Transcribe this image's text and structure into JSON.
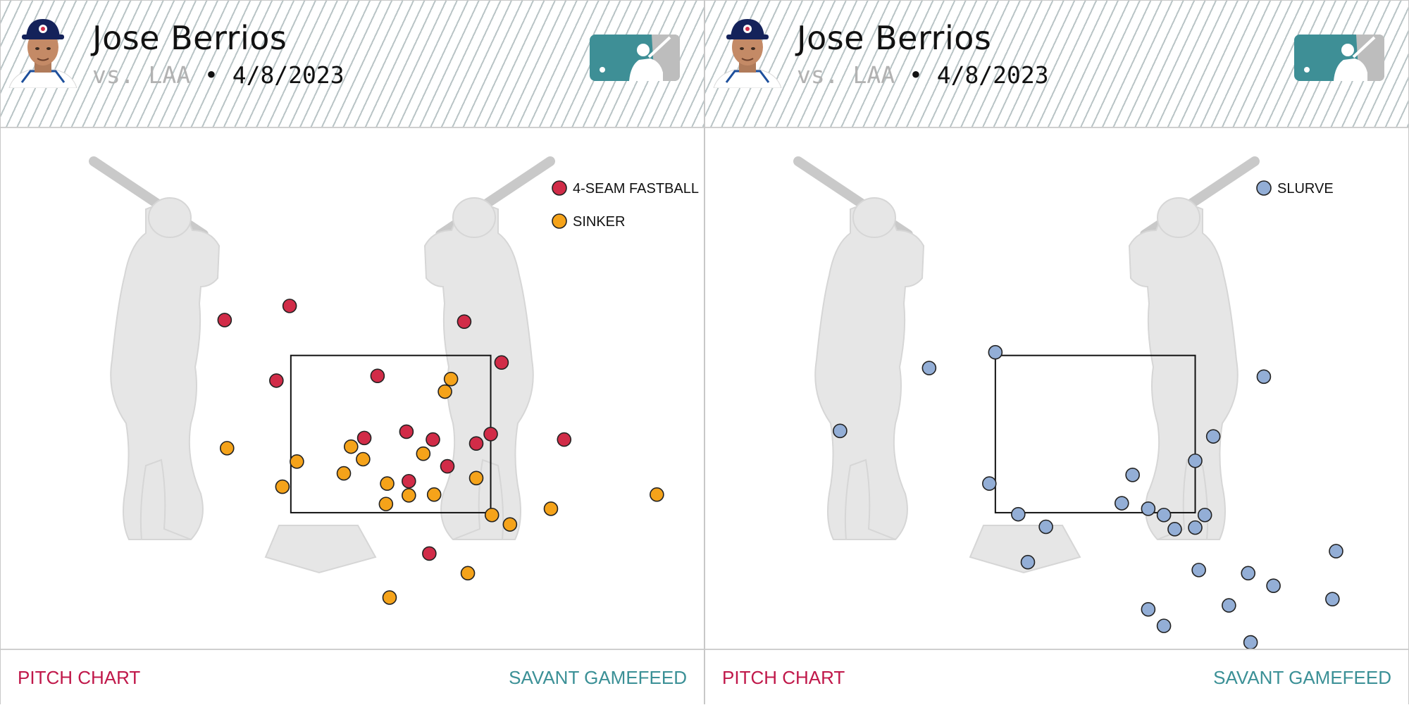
{
  "panels": [
    {
      "player": "Jose Berrios",
      "opponent": "vs. LAA",
      "separator": "•",
      "date": "4/8/2023",
      "footer_left": "PITCH CHART",
      "footer_right": "SAVANT GAMEFEED"
    },
    {
      "player": "Jose Berrios",
      "opponent": "vs. LAA",
      "separator": "•",
      "date": "4/8/2023",
      "footer_left": "PITCH CHART",
      "footer_right": "SAVANT GAMEFEED"
    }
  ],
  "colors": {
    "four_seam": "#d12c48",
    "sinker": "#f5a31a",
    "slurve": "#93aed6",
    "footer_left": "#c0184a",
    "footer_right": "#3b9096",
    "logo": "#3e8f96"
  },
  "icons": [
    "player-headshot-icon",
    "mlb-logo-icon",
    "batter-silhouette-icon",
    "home-plate-icon"
  ],
  "chart_data": [
    {
      "type": "scatter",
      "title": "",
      "xlabel": "",
      "ylabel": "",
      "note": "Pitch locations from catcher's view; strike zone rectangle shown",
      "grid": false,
      "legend": "top-right",
      "xlim": [
        -3.24,
        2.6
      ],
      "ylim": [
        -0.23,
        6.4
      ],
      "strike_zone": {
        "x": [
          -0.83,
          0.83
        ],
        "y": [
          1.5,
          3.5
        ]
      },
      "series": [
        {
          "name": "4-SEAM FASTBALL",
          "color": "#d12c48",
          "points": [
            [
              -1.38,
              3.95
            ],
            [
              -0.84,
              4.13
            ],
            [
              0.61,
              3.93
            ],
            [
              1.44,
              2.43
            ],
            [
              -0.95,
              3.18
            ],
            [
              -0.11,
              3.24
            ],
            [
              0.92,
              3.41
            ],
            [
              -0.22,
              2.45
            ],
            [
              0.13,
              2.53
            ],
            [
              0.35,
              2.43
            ],
            [
              0.71,
              2.38
            ],
            [
              0.83,
              2.5
            ],
            [
              0.47,
              2.09
            ],
            [
              0.15,
              1.9
            ],
            [
              0.32,
              0.98
            ]
          ]
        },
        {
          "name": "SINKER",
          "color": "#f5a31a",
          "points": [
            [
              0.5,
              3.2
            ],
            [
              0.45,
              3.04
            ],
            [
              -1.36,
              2.32
            ],
            [
              -0.33,
              2.34
            ],
            [
              -0.78,
              2.15
            ],
            [
              -0.23,
              2.18
            ],
            [
              0.27,
              2.25
            ],
            [
              -0.39,
              2.0
            ],
            [
              0.71,
              1.94
            ],
            [
              -0.9,
              1.83
            ],
            [
              -0.03,
              1.87
            ],
            [
              0.15,
              1.72
            ],
            [
              0.36,
              1.73
            ],
            [
              -0.04,
              1.61
            ],
            [
              0.84,
              1.47
            ],
            [
              0.99,
              1.35
            ],
            [
              1.33,
              1.55
            ],
            [
              2.21,
              1.73
            ],
            [
              0.64,
              0.73
            ],
            [
              -0.01,
              0.42
            ]
          ]
        }
      ]
    },
    {
      "type": "scatter",
      "title": "",
      "xlabel": "",
      "ylabel": "",
      "grid": false,
      "legend": "top-right",
      "xlim": [
        -3.24,
        2.6
      ],
      "ylim": [
        -0.23,
        6.4
      ],
      "strike_zone": {
        "x": [
          -0.83,
          0.83
        ],
        "y": [
          1.5,
          3.5
        ]
      },
      "series": [
        {
          "name": "SLURVE",
          "color": "#93aed6",
          "points": [
            [
              -0.83,
              3.54
            ],
            [
              -1.38,
              3.34
            ],
            [
              1.4,
              3.23
            ],
            [
              -2.12,
              2.54
            ],
            [
              0.98,
              2.47
            ],
            [
              0.83,
              2.16
            ],
            [
              0.31,
              1.98
            ],
            [
              -0.88,
              1.87
            ],
            [
              0.22,
              1.62
            ],
            [
              0.44,
              1.55
            ],
            [
              -0.64,
              1.48
            ],
            [
              0.57,
              1.47
            ],
            [
              0.91,
              1.47
            ],
            [
              0.83,
              1.31
            ],
            [
              0.66,
              1.29
            ],
            [
              -0.41,
              1.32
            ],
            [
              2.0,
              1.01
            ],
            [
              -0.56,
              0.87
            ],
            [
              0.86,
              0.77
            ],
            [
              1.27,
              0.73
            ],
            [
              1.48,
              0.57
            ],
            [
              1.97,
              0.4
            ],
            [
              1.11,
              0.32
            ],
            [
              0.44,
              0.27
            ],
            [
              0.57,
              0.06
            ],
            [
              1.29,
              -0.15
            ]
          ]
        }
      ]
    }
  ]
}
